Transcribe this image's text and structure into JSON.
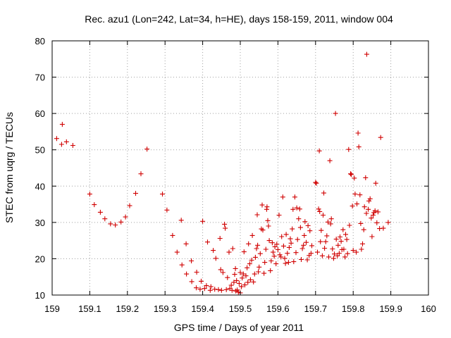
{
  "chart_data": {
    "type": "scatter",
    "title": "Rec. azu1 (Lon=242, Lat=34, h=HE), days 158-159, 2011, window 004",
    "xlabel": "GPS time / Days of year 2011",
    "ylabel": "STEC from uqrg / TECUs",
    "xlim": [
      159,
      160
    ],
    "ylim": [
      10,
      80
    ],
    "xticks": [
      159,
      159.1,
      159.2,
      159.3,
      159.4,
      159.5,
      159.6,
      159.7,
      159.8,
      159.9,
      160
    ],
    "xtick_labels": [
      "159",
      "159.1",
      "159.2",
      "159.3",
      "159.4",
      "159.5",
      "159.6",
      "159.7",
      "159.8",
      "159.9",
      "160"
    ],
    "yticks": [
      10,
      20,
      30,
      40,
      50,
      60,
      70,
      80
    ],
    "ytick_labels": [
      "10",
      "20",
      "30",
      "40",
      "50",
      "60",
      "70",
      "80"
    ],
    "grid": true,
    "marker": "+",
    "color": "#d00000",
    "points": [
      [
        159.012,
        53.1
      ],
      [
        159.025,
        51.5
      ],
      [
        159.027,
        57.0
      ],
      [
        159.038,
        52.2
      ],
      [
        159.055,
        51.2
      ],
      [
        159.1,
        37.8
      ],
      [
        159.112,
        34.9
      ],
      [
        159.128,
        32.8
      ],
      [
        159.14,
        31.0
      ],
      [
        159.155,
        29.6
      ],
      [
        159.168,
        29.3
      ],
      [
        159.183,
        30.1
      ],
      [
        159.195,
        31.5
      ],
      [
        159.206,
        34.6
      ],
      [
        159.222,
        38.0
      ],
      [
        159.236,
        43.4
      ],
      [
        159.252,
        50.2
      ],
      [
        159.293,
        37.8
      ],
      [
        159.305,
        33.4
      ],
      [
        159.32,
        26.4
      ],
      [
        159.332,
        21.8
      ],
      [
        159.343,
        30.6
      ],
      [
        159.345,
        18.3
      ],
      [
        159.356,
        24.1
      ],
      [
        159.357,
        15.8
      ],
      [
        159.37,
        19.4
      ],
      [
        159.371,
        13.7
      ],
      [
        159.383,
        12.0
      ],
      [
        159.384,
        16.3
      ],
      [
        159.393,
        11.6
      ],
      [
        159.396,
        13.8
      ],
      [
        159.4,
        30.3
      ],
      [
        159.405,
        11.8
      ],
      [
        159.41,
        12.6
      ],
      [
        159.413,
        24.6
      ],
      [
        159.42,
        11.3
      ],
      [
        159.422,
        12.3
      ],
      [
        159.428,
        22.3
      ],
      [
        159.432,
        11.6
      ],
      [
        159.435,
        20.1
      ],
      [
        159.442,
        11.5
      ],
      [
        159.446,
        25.6
      ],
      [
        159.448,
        17.0
      ],
      [
        159.45,
        11.3
      ],
      [
        159.454,
        16.2
      ],
      [
        159.458,
        29.5
      ],
      [
        159.46,
        28.4
      ],
      [
        159.463,
        11.5
      ],
      [
        159.466,
        14.8
      ],
      [
        159.47,
        21.8
      ],
      [
        159.472,
        11.8
      ],
      [
        159.476,
        12.7
      ],
      [
        159.478,
        11.3
      ],
      [
        159.48,
        22.8
      ],
      [
        159.483,
        13.5
      ],
      [
        159.485,
        15.7
      ],
      [
        159.487,
        17.3
      ],
      [
        159.488,
        11.1
      ],
      [
        159.49,
        14.0
      ],
      [
        159.492,
        11.4
      ],
      [
        159.495,
        10.8
      ],
      [
        159.497,
        13.2
      ],
      [
        159.5,
        10.6
      ],
      [
        159.5,
        16.2
      ],
      [
        159.503,
        12.3
      ],
      [
        159.505,
        14.7
      ],
      [
        159.508,
        15.8
      ],
      [
        159.51,
        21.9
      ],
      [
        159.512,
        12.8
      ],
      [
        159.515,
        15.3
      ],
      [
        159.518,
        17.5
      ],
      [
        159.52,
        13.5
      ],
      [
        159.522,
        24.1
      ],
      [
        159.525,
        18.6
      ],
      [
        159.527,
        14.2
      ],
      [
        159.53,
        19.6
      ],
      [
        159.532,
        26.4
      ],
      [
        159.535,
        13.6
      ],
      [
        159.538,
        15.8
      ],
      [
        159.54,
        20.4
      ],
      [
        159.543,
        22.8
      ],
      [
        159.545,
        32.1
      ],
      [
        159.546,
        23.7
      ],
      [
        159.548,
        16.4
      ],
      [
        159.55,
        17.7
      ],
      [
        159.553,
        21.4
      ],
      [
        159.556,
        28.2
      ],
      [
        159.558,
        34.8
      ],
      [
        159.56,
        27.9
      ],
      [
        159.563,
        16.0
      ],
      [
        159.565,
        19.0
      ],
      [
        159.568,
        22.6
      ],
      [
        159.57,
        33.6
      ],
      [
        159.571,
        34.3
      ],
      [
        159.573,
        30.5
      ],
      [
        159.575,
        29.0
      ],
      [
        159.577,
        25.0
      ],
      [
        159.58,
        16.7
      ],
      [
        159.582,
        19.4
      ],
      [
        159.585,
        24.4
      ],
      [
        159.587,
        21.8
      ],
      [
        159.59,
        20.7
      ],
      [
        159.592,
        23.3
      ],
      [
        159.595,
        18.6
      ],
      [
        159.597,
        24.0
      ],
      [
        159.6,
        22.5
      ],
      [
        159.603,
        32.0
      ],
      [
        159.605,
        21.1
      ],
      [
        159.608,
        20.5
      ],
      [
        159.61,
        26.1
      ],
      [
        159.613,
        37.0
      ],
      [
        159.615,
        23.5
      ],
      [
        159.618,
        20.1
      ],
      [
        159.62,
        18.7
      ],
      [
        159.622,
        26.7
      ],
      [
        159.625,
        21.5
      ],
      [
        159.628,
        19.0
      ],
      [
        159.63,
        23.1
      ],
      [
        159.633,
        25.5
      ],
      [
        159.635,
        24.3
      ],
      [
        159.638,
        28.2
      ],
      [
        159.64,
        33.6
      ],
      [
        159.642,
        19.2
      ],
      [
        159.645,
        37.0
      ],
      [
        159.648,
        21.7
      ],
      [
        159.65,
        34.0
      ],
      [
        159.652,
        25.3
      ],
      [
        159.655,
        31.0
      ],
      [
        159.658,
        33.7
      ],
      [
        159.66,
        28.6
      ],
      [
        159.662,
        19.8
      ],
      [
        159.665,
        22.8
      ],
      [
        159.668,
        23.7
      ],
      [
        159.67,
        26.4
      ],
      [
        159.672,
        30.2
      ],
      [
        159.675,
        24.5
      ],
      [
        159.678,
        19.7
      ],
      [
        159.68,
        29.1
      ],
      [
        159.683,
        20.9
      ],
      [
        159.685,
        27.7
      ],
      [
        159.688,
        21.5
      ],
      [
        159.69,
        23.6
      ],
      [
        159.7,
        41.0
      ],
      [
        159.702,
        40.8
      ],
      [
        159.705,
        21.8
      ],
      [
        159.708,
        33.7
      ],
      [
        159.71,
        49.7
      ],
      [
        159.711,
        33.0
      ],
      [
        159.713,
        24.7
      ],
      [
        159.715,
        27.8
      ],
      [
        159.718,
        20.8
      ],
      [
        159.72,
        32.0
      ],
      [
        159.722,
        38.1
      ],
      [
        159.724,
        22.9
      ],
      [
        159.727,
        24.7
      ],
      [
        159.73,
        26.3
      ],
      [
        159.733,
        30.1
      ],
      [
        159.735,
        20.5
      ],
      [
        159.738,
        47.0
      ],
      [
        159.74,
        29.6
      ],
      [
        159.742,
        31.0
      ],
      [
        159.745,
        22.7
      ],
      [
        159.748,
        20.1
      ],
      [
        159.75,
        21.3
      ],
      [
        159.753,
        60.0
      ],
      [
        159.755,
        25.4
      ],
      [
        159.758,
        20.8
      ],
      [
        159.76,
        23.7
      ],
      [
        159.763,
        21.5
      ],
      [
        159.765,
        26.0
      ],
      [
        159.768,
        24.8
      ],
      [
        159.77,
        22.5
      ],
      [
        159.773,
        28.0
      ],
      [
        159.775,
        22.6
      ],
      [
        159.778,
        20.5
      ],
      [
        159.78,
        26.7
      ],
      [
        159.783,
        25.3
      ],
      [
        159.785,
        21.4
      ],
      [
        159.788,
        50.1
      ],
      [
        159.79,
        29.2
      ],
      [
        159.793,
        43.4
      ],
      [
        159.795,
        43.2
      ],
      [
        159.798,
        34.5
      ],
      [
        159.8,
        22.3
      ],
      [
        159.803,
        42.2
      ],
      [
        159.805,
        37.8
      ],
      [
        159.808,
        21.8
      ],
      [
        159.81,
        35.1
      ],
      [
        159.813,
        54.6
      ],
      [
        159.815,
        50.8
      ],
      [
        159.818,
        37.6
      ],
      [
        159.82,
        29.7
      ],
      [
        159.822,
        22.6
      ],
      [
        159.825,
        24.1
      ],
      [
        159.828,
        28.0
      ],
      [
        159.83,
        34.3
      ],
      [
        159.833,
        42.3
      ],
      [
        159.835,
        32.5
      ],
      [
        159.836,
        76.3
      ],
      [
        159.84,
        33.6
      ],
      [
        159.842,
        35.9
      ],
      [
        159.845,
        36.5
      ],
      [
        159.848,
        31.2
      ],
      [
        159.85,
        26.1
      ],
      [
        159.853,
        32.0
      ],
      [
        159.855,
        32.7
      ],
      [
        159.858,
        33.2
      ],
      [
        159.86,
        40.8
      ],
      [
        159.863,
        29.9
      ],
      [
        159.866,
        32.9
      ],
      [
        159.87,
        28.3
      ],
      [
        159.873,
        53.4
      ],
      [
        159.88,
        28.4
      ],
      [
        159.893,
        30.0
      ]
    ]
  }
}
